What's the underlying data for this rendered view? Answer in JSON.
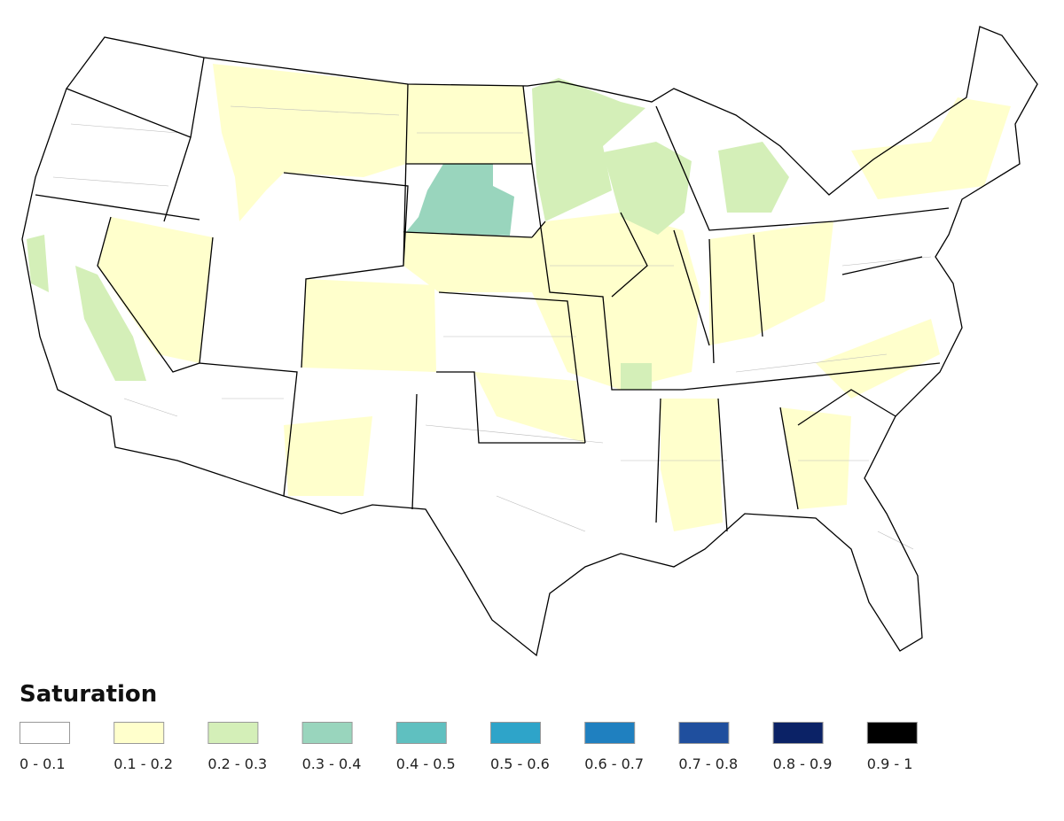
{
  "legend": {
    "title": "Saturation",
    "items": [
      {
        "label": "0 - 0.1",
        "color": "#ffffff"
      },
      {
        "label": "0.1 - 0.2",
        "color": "#ffffcc"
      },
      {
        "label": "0.2 - 0.3",
        "color": "#d4efb8"
      },
      {
        "label": "0.3 - 0.4",
        "color": "#99d5bd"
      },
      {
        "label": "0.4 - 0.5",
        "color": "#5fc0c0"
      },
      {
        "label": "0.5 - 0.6",
        "color": "#2ea4c9"
      },
      {
        "label": "0.6 - 0.7",
        "color": "#1f80c0"
      },
      {
        "label": "0.7 - 0.8",
        "color": "#1f4f9e"
      },
      {
        "label": "0.8 - 0.9",
        "color": "#0b2266"
      },
      {
        "label": "0.9 - 1",
        "color": "#000000"
      }
    ]
  }
}
